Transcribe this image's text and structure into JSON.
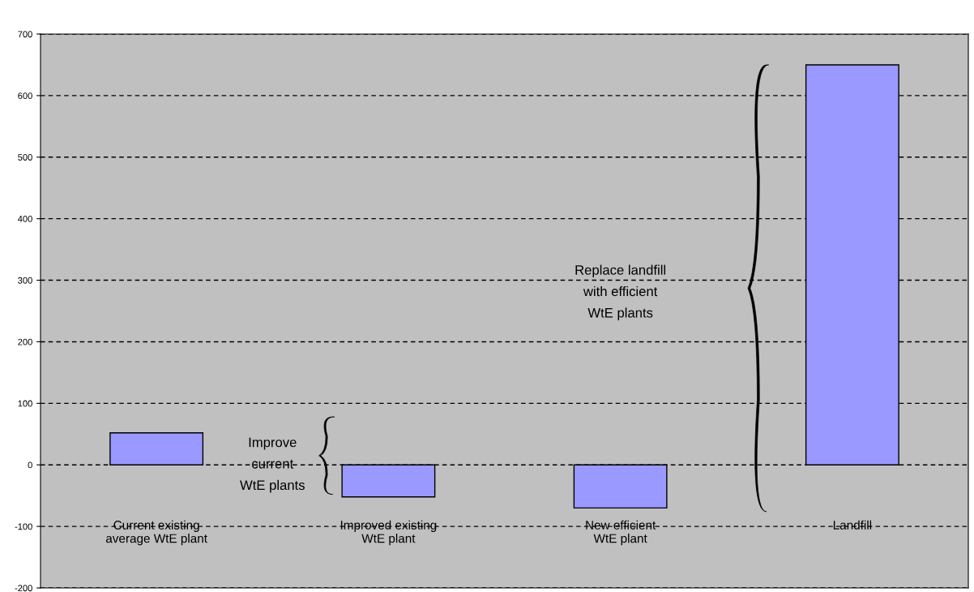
{
  "chart_data": {
    "type": "bar",
    "categories": [
      "Current existing\naverage WtE plant",
      "Improved existing\nWtE plant",
      "New efficient\nWtE plant",
      "Landfill"
    ],
    "values": [
      52,
      -52,
      -70,
      650
    ],
    "color": "#9999ff",
    "ylim": [
      -200,
      700
    ],
    "yticks": [
      -200,
      -100,
      0,
      100,
      200,
      300,
      400,
      500,
      600,
      700
    ],
    "grid": "y",
    "annotations": [
      "Improve\ncurrent\nWtE plants",
      "Replace landfill\nwith efficient\nWtE plants"
    ]
  }
}
